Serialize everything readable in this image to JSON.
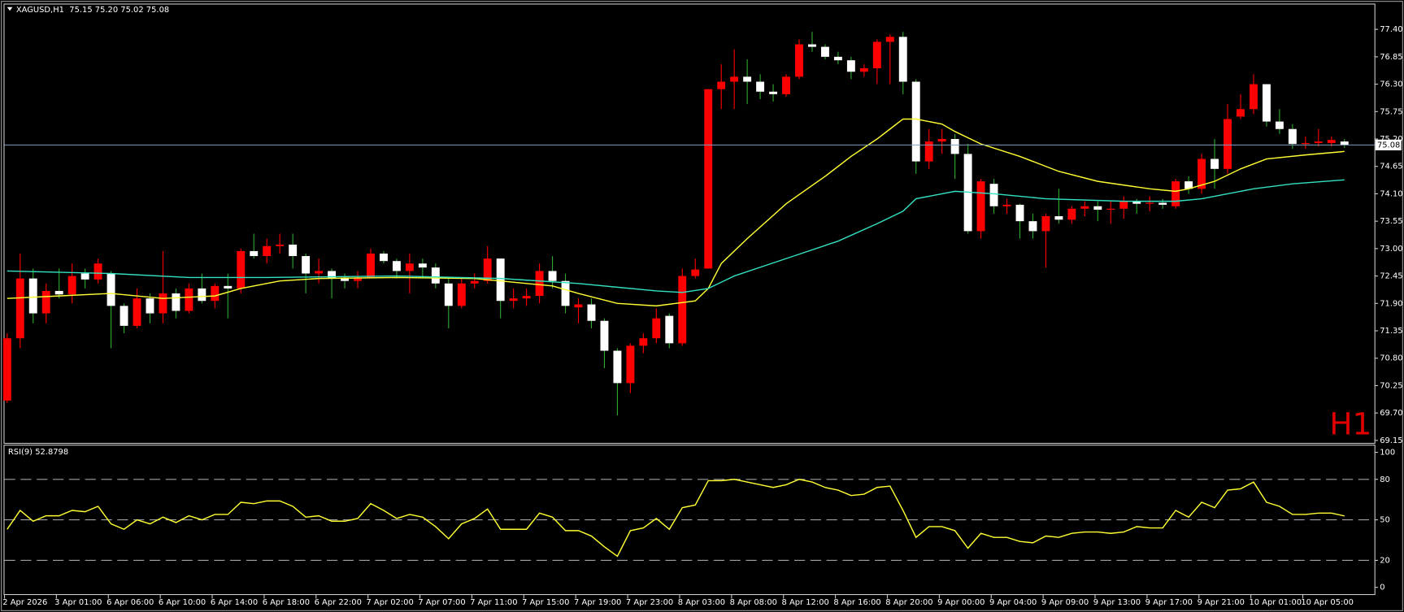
{
  "chart_data": [
    {
      "type": "candlestick",
      "title": "XAGUSD,H1  75.15 75.20 75.02 75.08",
      "annotation": "H1",
      "annotation_color": "#e00000",
      "up_color": "#ff0000",
      "down_color": "#ffffff",
      "up_wick": "#ff0000",
      "down_wick": "#2faa2f",
      "price_line_color": "#7f9fbf",
      "categories": [
        "2 Apr 2026",
        null,
        null,
        null,
        "3 Apr 01:00",
        null,
        null,
        null,
        "6 Apr 06:00",
        null,
        null,
        null,
        "6 Apr 10:00",
        null,
        null,
        null,
        "6 Apr 14:00",
        null,
        null,
        null,
        "6 Apr 18:00",
        null,
        null,
        null,
        "6 Apr 22:00",
        null,
        null,
        null,
        "7 Apr 02:00",
        null,
        null,
        null,
        "7 Apr 07:00",
        null,
        null,
        null,
        "7 Apr 11:00",
        null,
        null,
        null,
        "7 Apr 15:00",
        null,
        null,
        null,
        "7 Apr 19:00",
        null,
        null,
        null,
        "7 Apr 23:00",
        null,
        null,
        null,
        "8 Apr 03:00",
        null,
        null,
        null,
        "8 Apr 08:00",
        null,
        null,
        null,
        "8 Apr 12:00",
        null,
        null,
        null,
        "8 Apr 16:00",
        null,
        null,
        null,
        "8 Apr 20:00",
        null,
        null,
        null,
        "9 Apr 00:00",
        null,
        null,
        null,
        "9 Apr 04:00",
        null,
        null,
        null,
        "9 Apr 09:00",
        null,
        null,
        null,
        "9 Apr 13:00",
        null,
        null,
        null,
        "9 Apr 17:00",
        null,
        null,
        null,
        "9 Apr 21:00",
        null,
        null,
        null,
        "10 Apr 01:00",
        null,
        null,
        null,
        "10 Apr 05:00",
        null,
        null,
        null
      ],
      "open": [
        69.95,
        71.2,
        72.4,
        71.7,
        72.15,
        72.08,
        72.5,
        72.38,
        72.5,
        71.85,
        71.45,
        72.0,
        71.7,
        72.1,
        71.75,
        72.2,
        71.95,
        72.25,
        72.2,
        72.95,
        72.85,
        73.05,
        73.08,
        72.85,
        72.5,
        72.55,
        72.42,
        72.35,
        72.42,
        72.9,
        72.75,
        72.55,
        72.7,
        72.62,
        72.3,
        71.85,
        72.3,
        72.35,
        72.8,
        71.95,
        72.0,
        72.05,
        72.55,
        72.35,
        71.82,
        71.88,
        71.55,
        70.95,
        70.3,
        71.05,
        71.2,
        71.65,
        71.1,
        72.45,
        72.6,
        76.2,
        76.35,
        76.45,
        76.35,
        76.15,
        76.1,
        76.45,
        77.1,
        77.05,
        76.85,
        76.78,
        76.55,
        76.62,
        77.15,
        77.25,
        76.35,
        74.75,
        75.15,
        75.2,
        74.9,
        73.35,
        74.3,
        73.85,
        73.88,
        73.55,
        73.35,
        73.65,
        73.58,
        73.8,
        73.85,
        73.78,
        73.8,
        73.95,
        73.9,
        73.92,
        73.85,
        74.35,
        74.2,
        74.8,
        74.6,
        75.65,
        75.8,
        76.3,
        75.55,
        75.4,
        75.1,
        75.12,
        75.12,
        75.15
      ],
      "high": [
        71.3,
        72.9,
        72.6,
        72.3,
        72.6,
        72.7,
        72.6,
        72.8,
        72.55,
        71.9,
        72.2,
        72.1,
        72.95,
        72.2,
        72.3,
        72.5,
        72.3,
        72.5,
        73.0,
        73.3,
        73.2,
        73.3,
        73.3,
        72.9,
        72.8,
        72.6,
        72.5,
        72.55,
        73.0,
        72.95,
        72.8,
        72.9,
        72.8,
        72.7,
        72.4,
        72.4,
        72.5,
        73.05,
        72.8,
        72.2,
        72.2,
        72.7,
        72.85,
        72.5,
        72.0,
        72.0,
        71.6,
        71.0,
        71.1,
        71.3,
        71.8,
        71.7,
        72.6,
        72.8,
        76.2,
        76.7,
        77.0,
        76.8,
        76.5,
        76.3,
        76.5,
        77.2,
        77.35,
        77.1,
        76.95,
        76.85,
        76.7,
        77.2,
        77.3,
        77.35,
        76.4,
        75.4,
        75.4,
        75.3,
        75.1,
        74.4,
        74.4,
        74.0,
        73.9,
        73.7,
        73.7,
        74.2,
        73.85,
        73.95,
        73.95,
        73.95,
        74.05,
        74.0,
        74.05,
        74.0,
        74.4,
        74.45,
        74.9,
        75.2,
        75.9,
        76.1,
        76.5,
        76.3,
        75.8,
        75.5,
        75.25,
        75.4,
        75.25,
        75.2
      ],
      "low": [
        69.9,
        71.0,
        71.5,
        71.5,
        72.0,
        71.9,
        72.2,
        72.3,
        71.0,
        71.3,
        71.4,
        71.5,
        71.5,
        71.6,
        71.7,
        71.9,
        71.8,
        71.6,
        72.1,
        72.8,
        72.7,
        72.9,
        72.6,
        72.1,
        72.3,
        72.0,
        72.2,
        72.2,
        72.4,
        72.7,
        72.4,
        72.1,
        72.4,
        72.2,
        71.4,
        71.8,
        72.2,
        72.3,
        71.6,
        71.8,
        71.85,
        71.9,
        72.2,
        71.7,
        71.5,
        71.4,
        70.6,
        69.65,
        70.1,
        70.9,
        71.1,
        71.0,
        71.05,
        72.4,
        72.6,
        75.8,
        75.8,
        75.9,
        76.0,
        75.95,
        76.05,
        76.4,
        76.95,
        76.8,
        76.7,
        76.4,
        76.45,
        76.3,
        76.3,
        76.1,
        74.5,
        74.6,
        74.9,
        74.4,
        73.3,
        73.2,
        73.7,
        73.7,
        73.2,
        73.2,
        72.62,
        73.5,
        73.5,
        73.65,
        73.55,
        73.5,
        73.6,
        73.7,
        73.75,
        73.8,
        73.8,
        74.1,
        74.1,
        74.2,
        74.5,
        75.6,
        75.7,
        75.45,
        75.3,
        75.0,
        75.0,
        75.05,
        75.05,
        75.02
      ],
      "close": [
        71.2,
        72.4,
        71.7,
        72.15,
        72.08,
        72.45,
        72.38,
        72.7,
        71.85,
        71.45,
        72.0,
        71.7,
        72.1,
        71.75,
        72.2,
        71.95,
        72.25,
        72.2,
        72.95,
        72.85,
        73.05,
        73.08,
        72.85,
        72.5,
        72.55,
        72.4,
        72.35,
        72.42,
        72.9,
        72.75,
        72.55,
        72.7,
        72.62,
        72.3,
        71.85,
        72.3,
        72.35,
        72.8,
        71.95,
        72.0,
        72.05,
        72.55,
        72.35,
        71.85,
        71.88,
        71.55,
        70.95,
        70.3,
        71.05,
        71.2,
        71.6,
        71.1,
        72.45,
        72.58,
        76.2,
        76.35,
        76.45,
        76.35,
        76.15,
        76.1,
        76.45,
        77.1,
        77.05,
        76.85,
        76.78,
        76.55,
        76.62,
        77.15,
        77.25,
        76.35,
        74.75,
        75.15,
        75.2,
        74.9,
        73.35,
        74.35,
        73.85,
        73.88,
        73.55,
        73.35,
        73.65,
        73.58,
        73.8,
        73.85,
        73.78,
        73.8,
        73.95,
        73.9,
        73.92,
        73.88,
        74.35,
        74.2,
        74.8,
        74.6,
        75.6,
        75.8,
        76.3,
        75.55,
        75.4,
        75.1,
        75.12,
        75.15,
        75.18,
        75.08
      ],
      "series": [
        {
          "color": "#ffff33",
          "x": [
            0,
            4,
            8,
            12,
            16,
            18,
            21,
            24,
            30,
            36,
            38,
            42,
            44,
            47,
            50,
            53,
            54,
            55,
            57,
            60,
            63,
            65,
            67,
            68,
            69,
            70,
            72,
            73,
            75,
            78,
            81,
            84,
            88,
            90,
            91,
            93,
            95,
            97,
            100,
            103
          ],
          "values": [
            72.0,
            72.05,
            72.1,
            72.0,
            72.05,
            72.2,
            72.35,
            72.4,
            72.42,
            72.4,
            72.35,
            72.25,
            72.1,
            71.9,
            71.85,
            71.95,
            72.2,
            72.7,
            73.2,
            73.9,
            74.45,
            74.85,
            75.2,
            75.4,
            75.6,
            75.6,
            75.5,
            75.35,
            75.1,
            74.85,
            74.55,
            74.35,
            74.2,
            74.15,
            74.2,
            74.35,
            74.6,
            74.8,
            74.88,
            74.95
          ]
        },
        {
          "color": "#33e0c0",
          "x": [
            0,
            8,
            14,
            20,
            30,
            38,
            44,
            50,
            52,
            54,
            56,
            60,
            64,
            67,
            69,
            70,
            71,
            73,
            76,
            80,
            86,
            90,
            92,
            94,
            96,
            99,
            103
          ],
          "values": [
            72.55,
            72.5,
            72.42,
            72.42,
            72.45,
            72.4,
            72.3,
            72.15,
            72.12,
            72.2,
            72.45,
            72.8,
            73.15,
            73.5,
            73.75,
            74.0,
            74.05,
            74.15,
            74.1,
            74.0,
            73.95,
            73.95,
            74.0,
            74.1,
            74.2,
            74.3,
            74.38
          ]
        }
      ],
      "ylim": [
        69.1,
        77.9
      ],
      "yticks": [
        {
          "value": 77.4,
          "label": "77.40"
        },
        76.85,
        {
          "value": 76.3,
          "label": "76.30"
        },
        75.75,
        {
          "value": 75.2,
          "label": "75.20"
        },
        74.65,
        {
          "value": 74.1,
          "label": "74.10"
        },
        73.55,
        {
          "value": 73.0,
          "label": "73.00"
        },
        72.45,
        {
          "value": 71.9,
          "label": "71.90"
        },
        71.35,
        {
          "value": 70.8,
          "label": "70.80"
        },
        70.25,
        {
          "value": 69.7,
          "label": "69.70"
        },
        69.15
      ],
      "grid": false
    },
    {
      "type": "line",
      "title": "RSI(9) 52.8798",
      "color": "#ffff33",
      "values": [
        43,
        57,
        49,
        53,
        53,
        57,
        56,
        60,
        47,
        43,
        50,
        47,
        52,
        48,
        53,
        50,
        54,
        54,
        63,
        62,
        64,
        64,
        60,
        52,
        53,
        49,
        49,
        51,
        62,
        57,
        51,
        54,
        52,
        45,
        36,
        47,
        51,
        58,
        43,
        43,
        43,
        55,
        52,
        42,
        42,
        38,
        30,
        23,
        42,
        44,
        51,
        43,
        59,
        61,
        79,
        79,
        80,
        78,
        76,
        74,
        76,
        80,
        78,
        74,
        72,
        68,
        69,
        74,
        75,
        57,
        37,
        45,
        45,
        42,
        29,
        40,
        37,
        37,
        34,
        33,
        38,
        37,
        40,
        41,
        41,
        40,
        41,
        45,
        44,
        44,
        57,
        52,
        63,
        59,
        72,
        73,
        78,
        63,
        60,
        54,
        54,
        55,
        55,
        52.88
      ],
      "ylim": [
        -5,
        105
      ],
      "yticks": [
        100,
        80,
        50,
        20,
        0
      ],
      "grid": true
    }
  ]
}
